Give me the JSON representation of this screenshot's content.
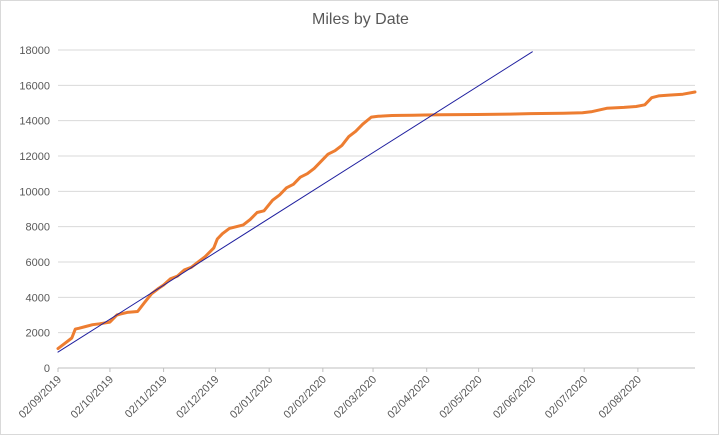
{
  "chart_data": {
    "type": "line",
    "title": "Miles by Date",
    "xlabel": "",
    "ylabel": "",
    "ylim": [
      0,
      18000
    ],
    "yticks": [
      0,
      2000,
      4000,
      6000,
      8000,
      10000,
      12000,
      14000,
      16000,
      18000
    ],
    "xticks": [
      "02/09/2019",
      "02/10/2019",
      "02/11/2019",
      "02/12/2019",
      "02/01/2020",
      "02/02/2020",
      "02/03/2020",
      "02/04/2020",
      "02/05/2020",
      "02/06/2020",
      "02/07/2020",
      "02/08/2020"
    ],
    "grid": true,
    "legend": "none",
    "series": [
      {
        "color": "#ed7d31",
        "x": [
          "2019-09-02",
          "2019-09-06",
          "2019-09-10",
          "2019-09-12",
          "2019-09-14",
          "2019-09-18",
          "2019-09-22",
          "2019-09-26",
          "2019-10-02",
          "2019-10-06",
          "2019-10-08",
          "2019-10-12",
          "2019-10-18",
          "2019-10-22",
          "2019-10-26",
          "2019-10-30",
          "2019-11-02",
          "2019-11-06",
          "2019-11-10",
          "2019-11-14",
          "2019-11-18",
          "2019-11-22",
          "2019-11-26",
          "2019-12-01",
          "2019-12-03",
          "2019-12-06",
          "2019-12-10",
          "2019-12-14",
          "2019-12-18",
          "2019-12-22",
          "2019-12-26",
          "2019-12-30",
          "2020-01-04",
          "2020-01-08",
          "2020-01-12",
          "2020-01-16",
          "2020-01-20",
          "2020-01-24",
          "2020-01-28",
          "2020-02-01",
          "2020-02-05",
          "2020-02-09",
          "2020-02-13",
          "2020-02-17",
          "2020-02-21",
          "2020-02-25",
          "2020-03-01",
          "2020-03-05",
          "2020-03-09",
          "2020-03-13",
          "2020-03-18",
          "2020-03-25",
          "2020-04-01",
          "2020-04-10",
          "2020-05-01",
          "2020-05-20",
          "2020-06-01",
          "2020-06-20",
          "2020-07-01",
          "2020-07-06",
          "2020-07-15",
          "2020-07-25",
          "2020-08-01",
          "2020-08-06",
          "2020-08-10",
          "2020-08-14",
          "2020-08-20",
          "2020-08-28",
          "2020-09-04"
        ],
        "values": [
          1100,
          1400,
          1700,
          2200,
          2250,
          2350,
          2450,
          2500,
          2600,
          3000,
          3050,
          3150,
          3200,
          3700,
          4200,
          4500,
          4700,
          5050,
          5200,
          5550,
          5700,
          6000,
          6300,
          6800,
          7300,
          7600,
          7900,
          8000,
          8100,
          8400,
          8800,
          8900,
          9500,
          9800,
          10200,
          10400,
          10800,
          11000,
          11300,
          11700,
          12100,
          12300,
          12600,
          13100,
          13400,
          13800,
          14200,
          14250,
          14270,
          14290,
          14300,
          14310,
          14320,
          14330,
          14350,
          14370,
          14400,
          14420,
          14450,
          14500,
          14700,
          14750,
          14800,
          14900,
          15300,
          15400,
          15450,
          15500,
          15620
        ]
      },
      {
        "color": "#1f1f9f",
        "x": [
          "2019-09-02",
          "2020-06-02"
        ],
        "values": [
          900,
          17900
        ]
      }
    ]
  }
}
